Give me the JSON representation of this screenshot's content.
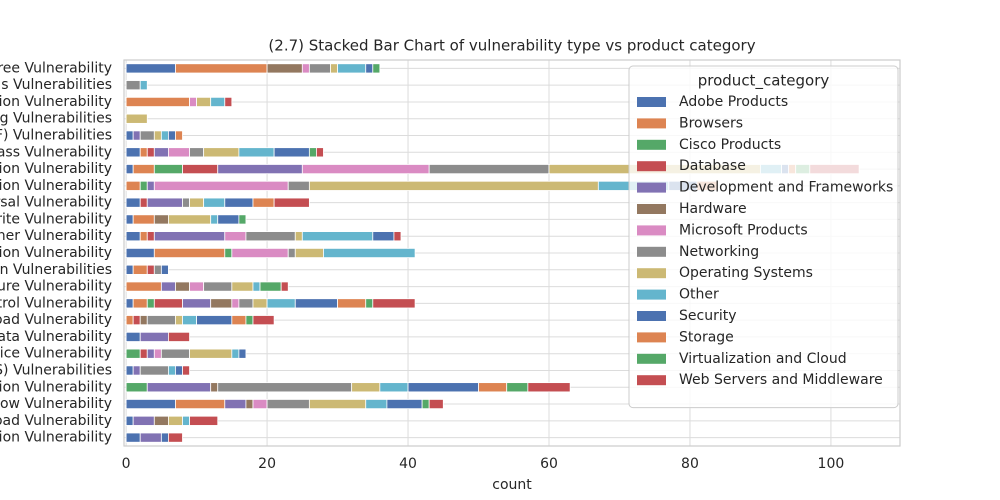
{
  "chart_data": {
    "type": "stacked_barh",
    "title": "(2.7) Stacked Bar Chart of  vulnerability type vs product category",
    "x_label": "count",
    "legend_title": "product_category",
    "legend_position": "upper right",
    "grid": true,
    "xlim": [
      -0.3,
      109.8
    ],
    "xticks": [
      0,
      20,
      40,
      60,
      80,
      100
    ],
    "categories": [
      "Free Vulnerability",
      "als Vulnerabilities",
      "sion Vulnerability",
      "ng Vulnerabilities",
      "F) Vulnerabilities",
      "ass Vulnerability",
      "tion Vulnerability",
      "tion Vulnerability",
      "rsal Vulnerability",
      "Vrite Vulnerability",
      "ther Vulnerability",
      "tion Vulnerability",
      "on Vulnerabilities",
      "sure Vulnerability",
      "ntrol Vulnerability",
      "oad Vulnerability",
      "Data Vulnerability",
      "vice Vulnerability",
      "S) Vulnerabilities",
      "tion Vulnerability",
      "flow Vulnerability",
      "oad Vulnerability",
      "tion Vulnerability"
    ],
    "series": [
      {
        "name": "Adobe Products",
        "color": "#4c72b0",
        "values": [
          7,
          0,
          0,
          0,
          1,
          2,
          1,
          0,
          2,
          1,
          2,
          4,
          1,
          0,
          1,
          0,
          2,
          0,
          1,
          0,
          7,
          1,
          2
        ]
      },
      {
        "name": "Browsers",
        "color": "#dd8452",
        "values": [
          13,
          0,
          9,
          0,
          0,
          1,
          3,
          2,
          0,
          3,
          1,
          10,
          2,
          5,
          2,
          1,
          0,
          0,
          0,
          0,
          7,
          0,
          0
        ]
      },
      {
        "name": "Cisco Products",
        "color": "#55a868",
        "values": [
          0,
          0,
          0,
          0,
          0,
          0,
          4,
          1,
          0,
          0,
          0,
          1,
          0,
          0,
          1,
          0,
          0,
          2,
          0,
          3,
          0,
          0,
          0
        ]
      },
      {
        "name": "Database",
        "color": "#c44e52",
        "values": [
          0,
          0,
          0,
          0,
          0,
          1,
          5,
          0,
          1,
          0,
          1,
          0,
          1,
          0,
          4,
          1,
          0,
          1,
          0,
          0,
          0,
          0,
          0
        ]
      },
      {
        "name": "Development and Frameworks",
        "color": "#8172b3",
        "values": [
          0,
          0,
          0,
          0,
          1,
          2,
          12,
          1,
          5,
          0,
          10,
          0,
          0,
          2,
          4,
          0,
          4,
          1,
          1,
          9,
          3,
          3,
          3
        ]
      },
      {
        "name": "Hardware",
        "color": "#937860",
        "values": [
          5,
          0,
          0,
          0,
          0,
          0,
          0,
          0,
          0,
          2,
          0,
          0,
          0,
          2,
          3,
          1,
          0,
          0,
          0,
          1,
          1,
          2,
          0
        ]
      },
      {
        "name": "Microsoft Products",
        "color": "#da8bc3",
        "values": [
          1,
          0,
          1,
          0,
          0,
          3,
          18,
          19,
          0,
          0,
          3,
          8,
          0,
          2,
          1,
          0,
          0,
          1,
          0,
          0,
          2,
          0,
          0
        ]
      },
      {
        "name": "Networking",
        "color": "#8c8c8c",
        "values": [
          3,
          2,
          0,
          0,
          2,
          2,
          17,
          3,
          1,
          0,
          7,
          1,
          1,
          4,
          2,
          4,
          0,
          4,
          4,
          19,
          6,
          0,
          0
        ]
      },
      {
        "name": "Operating Systems",
        "color": "#ccb974",
        "values": [
          1,
          0,
          2,
          3,
          1,
          5,
          30,
          41,
          2,
          6,
          1,
          4,
          0,
          3,
          2,
          1,
          0,
          6,
          0,
          4,
          8,
          2,
          0
        ]
      },
      {
        "name": "Other",
        "color": "#64b5cd",
        "values": [
          4,
          1,
          2,
          0,
          1,
          5,
          3,
          10,
          3,
          1,
          10,
          13,
          0,
          1,
          4,
          2,
          0,
          1,
          1,
          4,
          3,
          1,
          0
        ]
      },
      {
        "name": "Security",
        "color": "#4c72b0",
        "values": [
          1,
          0,
          0,
          0,
          1,
          5,
          1,
          4,
          4,
          3,
          3,
          0,
          1,
          0,
          6,
          5,
          0,
          1,
          1,
          10,
          5,
          0,
          1
        ]
      },
      {
        "name": "Storage",
        "color": "#dd8452",
        "values": [
          0,
          0,
          0,
          0,
          1,
          0,
          1,
          3,
          3,
          0,
          0,
          0,
          0,
          0,
          4,
          2,
          0,
          0,
          0,
          4,
          0,
          0,
          0
        ]
      },
      {
        "name": "Virtualization and Cloud",
        "color": "#55a868",
        "values": [
          1,
          0,
          0,
          0,
          0,
          1,
          2,
          0,
          0,
          1,
          0,
          0,
          0,
          3,
          1,
          1,
          0,
          0,
          0,
          3,
          1,
          0,
          0
        ]
      },
      {
        "name": "Web Servers and Middleware",
        "color": "#c44e52",
        "values": [
          0,
          0,
          1,
          0,
          0,
          1,
          7,
          0,
          5,
          0,
          1,
          0,
          0,
          1,
          6,
          3,
          3,
          0,
          1,
          6,
          2,
          4,
          2
        ]
      }
    ]
  }
}
